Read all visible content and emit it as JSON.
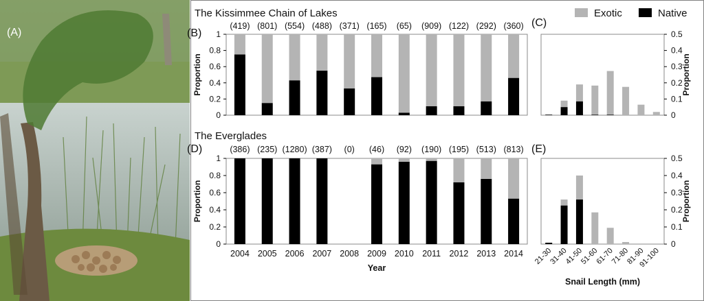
{
  "panel_letters": {
    "a": "(A)",
    "b": "(B)",
    "c": "(C)",
    "d": "(D)",
    "e": "(E)"
  },
  "legend": {
    "exotic": "Exotic",
    "native": "Native"
  },
  "colors": {
    "exotic": "#b4b4b4",
    "native": "#000000",
    "axis": "#000000",
    "border": "#808080"
  },
  "photo": {
    "description_icon": "wetland-photo"
  },
  "chart_data": [
    {
      "id": "B",
      "type": "bar",
      "stacked": true,
      "title": "The Kissimmee Chain of Lakes",
      "ylabel": "Proportion",
      "xlabel": "",
      "ylim": [
        0,
        1
      ],
      "yticks": [
        "0",
        "0.2",
        "0.4",
        "0.6",
        "0.8",
        "1"
      ],
      "categories": [
        "2004",
        "2005",
        "2006",
        "2007",
        "2008",
        "2009",
        "2010",
        "2011",
        "2012",
        "2013",
        "2014"
      ],
      "sample_sizes": [
        "(419)",
        "(801)",
        "(554)",
        "(488)",
        "(371)",
        "(165)",
        "(65)",
        "(909)",
        "(122)",
        "(292)",
        "(360)"
      ],
      "series": [
        {
          "name": "Native",
          "values": [
            0.75,
            0.15,
            0.43,
            0.55,
            0.33,
            0.47,
            0.03,
            0.11,
            0.11,
            0.17,
            0.46
          ]
        },
        {
          "name": "Exotic",
          "values": [
            0.25,
            0.85,
            0.57,
            0.45,
            0.67,
            0.53,
            0.97,
            0.89,
            0.89,
            0.83,
            0.54
          ]
        }
      ],
      "grid": false
    },
    {
      "id": "C",
      "type": "bar",
      "stacked": true,
      "ylabel": "Proportion",
      "ylabel_side": "right",
      "ylim": [
        0,
        0.5
      ],
      "yticks": [
        "0",
        "0.1",
        "0.2",
        "0.3",
        "0.4",
        "0.5"
      ],
      "categories": [
        "21-30",
        "31-40",
        "41-50",
        "51-60",
        "61-70",
        "71-80",
        "81-90",
        "91-100"
      ],
      "series": [
        {
          "name": "Native",
          "values": [
            0.003,
            0.05,
            0.085,
            0.003,
            0.003,
            0.0,
            0.0,
            0.0
          ]
        },
        {
          "name": "Exotic",
          "values": [
            0.002,
            0.04,
            0.105,
            0.18,
            0.27,
            0.175,
            0.065,
            0.02
          ]
        }
      ],
      "grid": false
    },
    {
      "id": "D",
      "type": "bar",
      "stacked": true,
      "title": "The Everglades",
      "ylabel": "Proportion",
      "xlabel": "Year",
      "ylim": [
        0,
        1
      ],
      "yticks": [
        "0",
        "0.2",
        "0.4",
        "0.6",
        "0.8",
        "1"
      ],
      "categories": [
        "2004",
        "2005",
        "2006",
        "2007",
        "2008",
        "2009",
        "2010",
        "2011",
        "2012",
        "2013",
        "2014"
      ],
      "sample_sizes": [
        "(386)",
        "(235)",
        "(1280)",
        "(387)",
        "(0)",
        "(46)",
        "(92)",
        "(190)",
        "(195)",
        "(513)",
        "(813)"
      ],
      "series": [
        {
          "name": "Native",
          "values": [
            1.0,
            1.0,
            1.0,
            1.0,
            0.0,
            0.93,
            0.96,
            0.97,
            0.72,
            0.76,
            0.53
          ]
        },
        {
          "name": "Exotic",
          "values": [
            0.0,
            0.0,
            0.0,
            0.0,
            0.0,
            0.07,
            0.04,
            0.03,
            0.28,
            0.24,
            0.47
          ]
        }
      ],
      "grid": false
    },
    {
      "id": "E",
      "type": "bar",
      "stacked": true,
      "ylabel": "Proportion",
      "ylabel_side": "right",
      "xlabel": "Snail Length (mm)",
      "ylim": [
        0,
        0.5
      ],
      "yticks": [
        "0",
        "0.1",
        "0.2",
        "0.3",
        "0.4",
        "0.5"
      ],
      "categories": [
        "21-30",
        "31-40",
        "41-50",
        "51-60",
        "61-70",
        "71-80",
        "81-90",
        "91-100"
      ],
      "series": [
        {
          "name": "Native",
          "values": [
            0.008,
            0.225,
            0.26,
            0.0,
            0.0,
            0.0,
            0.0,
            0.0
          ]
        },
        {
          "name": "Exotic",
          "values": [
            0.0,
            0.035,
            0.14,
            0.185,
            0.095,
            0.012,
            0.0,
            0.0
          ]
        }
      ],
      "grid": false
    }
  ]
}
